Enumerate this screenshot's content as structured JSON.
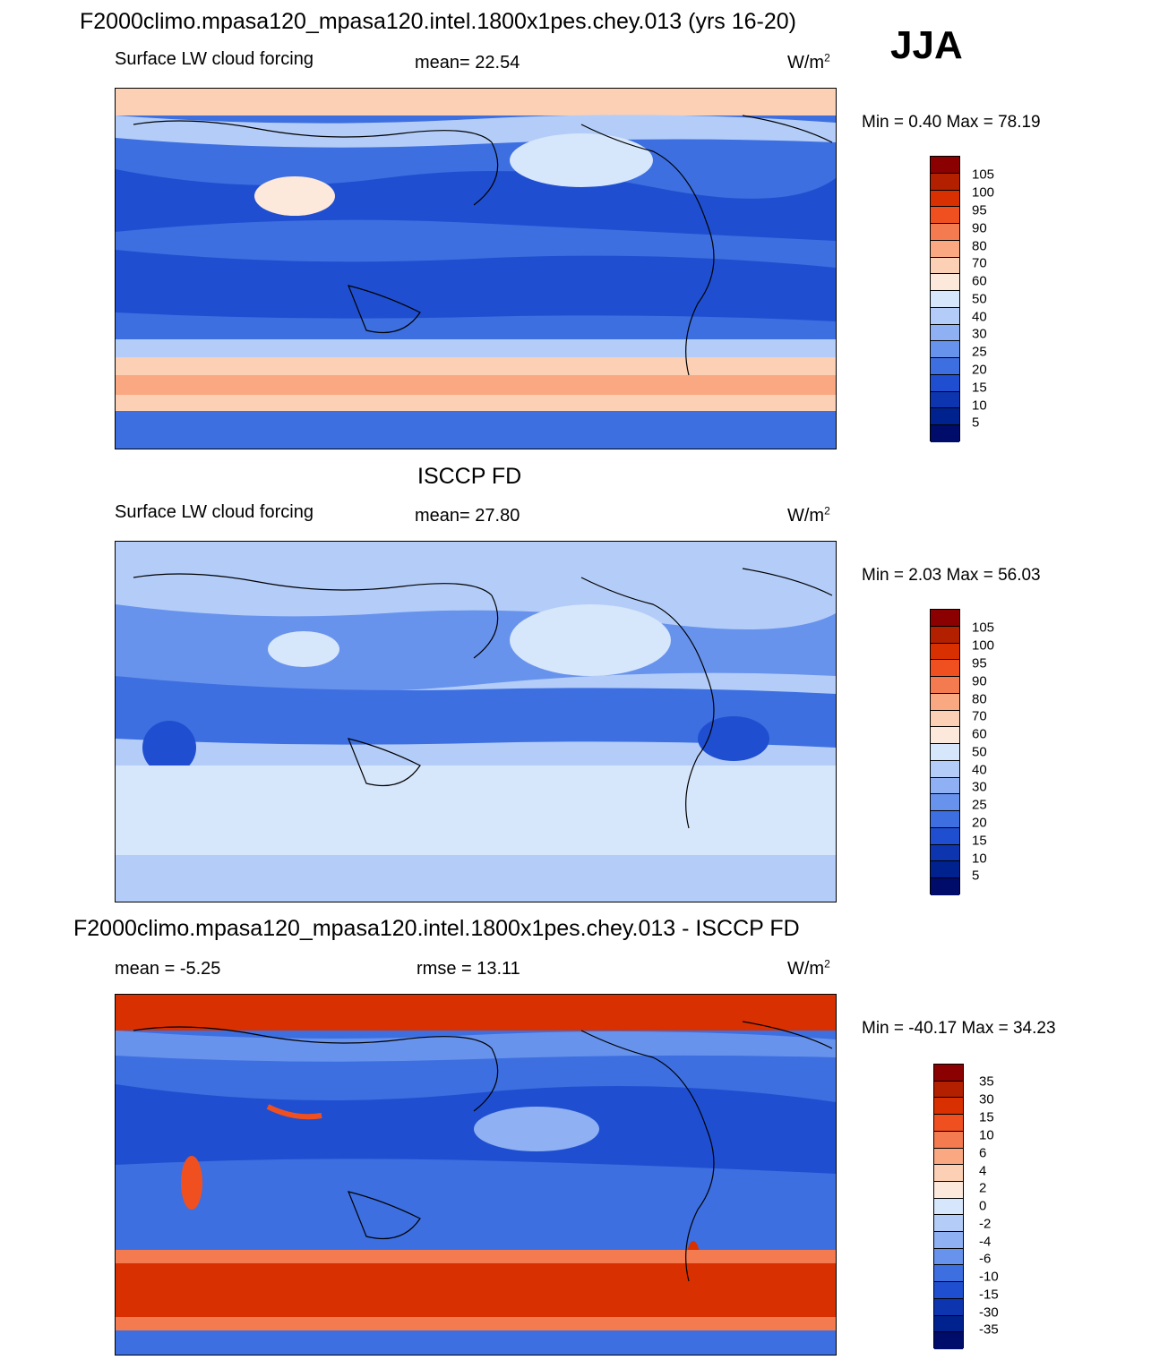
{
  "main_title": "F2000climo.mpasa120_mpasa120.intel.1800x1pes.chey.013 (yrs 16-20)",
  "season": "JJA",
  "colors": [
    "#8b0000",
    "#b22000",
    "#d83000",
    "#f05020",
    "#f47a50",
    "#f9a882",
    "#fcd0b4",
    "#fde9dc",
    "#d6e6fb",
    "#b4cdf8",
    "#8fb1f3",
    "#6893ed",
    "#3d6fe0",
    "#1f4fd0",
    "#0d35b0",
    "#00228e",
    "#000c6a"
  ],
  "panels": [
    {
      "label_left": "Surface LW cloud forcing",
      "label_mid": "mean=  22.54",
      "units": "W/m",
      "units_sup": "2",
      "minmax": "Min =   0.40 Max =  78.19",
      "colorbar_ticks": [
        "105",
        "100",
        "95",
        "90",
        "80",
        "70",
        "60",
        "50",
        "40",
        "30",
        "25",
        "20",
        "15",
        "10",
        "5"
      ]
    },
    {
      "subtitle": "ISCCP FD",
      "label_left": "Surface LW cloud forcing",
      "label_mid": "mean=  27.80",
      "units": "W/m",
      "units_sup": "2",
      "minmax": "Min =   2.03 Max =  56.03",
      "colorbar_ticks": [
        "105",
        "100",
        "95",
        "90",
        "80",
        "70",
        "60",
        "50",
        "40",
        "30",
        "25",
        "20",
        "15",
        "10",
        "5"
      ]
    },
    {
      "subtitle": "F2000climo.mpasa120_mpasa120.intel.1800x1pes.chey.013 - ISCCP FD",
      "label_left": "mean =  -5.25",
      "label_mid": "rmse =  13.11",
      "units": "W/m",
      "units_sup": "2",
      "minmax": "Min = -40.17 Max =  34.23",
      "colorbar_ticks": [
        "35",
        "30",
        "15",
        "10",
        "6",
        "4",
        "2",
        "0",
        "-2",
        "-4",
        "-6",
        "-10",
        "-15",
        "-30",
        "-35"
      ]
    }
  ]
}
